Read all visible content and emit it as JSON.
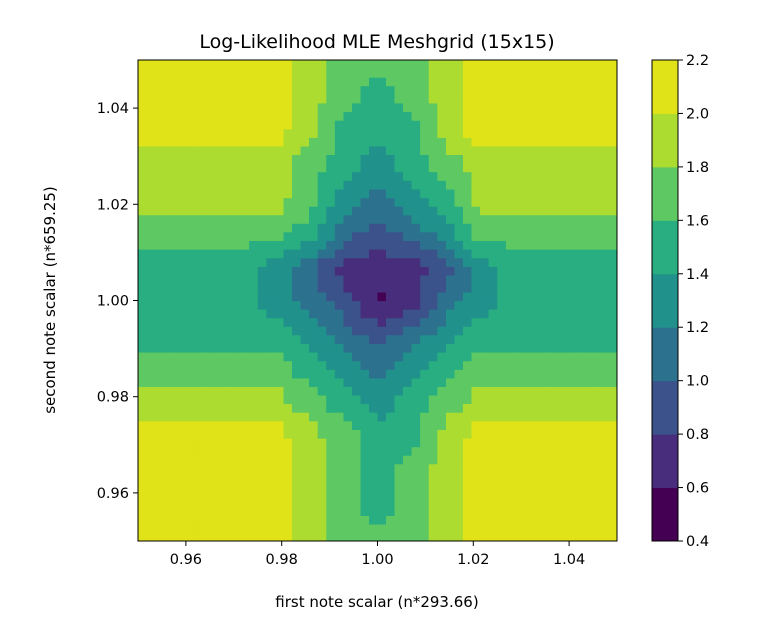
{
  "chart_data": {
    "type": "heatmap",
    "subtype": "filled-contour",
    "title": "Log-Likelihood MLE Meshgrid (15x15)",
    "xlabel": "first note scalar (n*293.66)",
    "ylabel": "second note scalar (n*659.25)",
    "xlim": [
      0.95,
      1.05
    ],
    "ylim": [
      0.95,
      1.05
    ],
    "x_ticks": [
      "0.96",
      "0.98",
      "1.00",
      "1.02",
      "1.04"
    ],
    "y_ticks": [
      "0.96",
      "0.98",
      "1.00",
      "1.02",
      "1.04"
    ],
    "grid": false,
    "colormap": "viridis",
    "colorbar": {
      "levels": [
        0.4,
        0.6,
        0.8,
        1.0,
        1.2,
        1.4,
        1.6,
        1.8,
        2.0,
        2.2
      ],
      "tick_labels": [
        "0.4",
        "0.6",
        "0.8",
        "1.0",
        "1.2",
        "1.4",
        "1.6",
        "1.8",
        "2.0",
        "2.2"
      ],
      "colors": [
        "#440154",
        "#472d7b",
        "#3b528b",
        "#2c728e",
        "#21918c",
        "#28ae80",
        "#5ec962",
        "#addc30",
        "#dfe318"
      ]
    },
    "grid_size": "15x15",
    "grid_axis": [
      0.95,
      0.9571,
      0.9643,
      0.9714,
      0.9786,
      0.9857,
      0.9929,
      1.0,
      1.0071,
      1.0143,
      1.0214,
      1.0286,
      1.0357,
      1.0429,
      1.05
    ],
    "z_estimated": [
      [
        2.1,
        2.1,
        2.1,
        2.1,
        2.1,
        1.9,
        1.7,
        1.7,
        1.7,
        1.9,
        2.1,
        2.1,
        2.1,
        2.1,
        2.1
      ],
      [
        2.1,
        2.1,
        2.1,
        2.1,
        2.1,
        1.9,
        1.7,
        1.5,
        1.7,
        1.9,
        2.1,
        2.1,
        2.1,
        2.1,
        2.1
      ],
      [
        2.1,
        2.1,
        2.1,
        2.1,
        2.1,
        1.9,
        1.7,
        1.5,
        1.7,
        1.9,
        2.1,
        2.1,
        2.1,
        2.1,
        2.1
      ],
      [
        2.1,
        2.1,
        2.1,
        2.1,
        2.1,
        1.9,
        1.7,
        1.5,
        1.5,
        1.9,
        2.1,
        2.1,
        2.1,
        2.1,
        2.1
      ],
      [
        1.9,
        1.9,
        1.9,
        1.9,
        1.9,
        1.7,
        1.5,
        1.3,
        1.5,
        1.7,
        1.9,
        1.9,
        1.9,
        1.9,
        1.9
      ],
      [
        1.7,
        1.7,
        1.7,
        1.7,
        1.7,
        1.5,
        1.3,
        1.1,
        1.3,
        1.5,
        1.7,
        1.7,
        1.7,
        1.7,
        1.7
      ],
      [
        1.5,
        1.5,
        1.5,
        1.5,
        1.5,
        1.3,
        1.1,
        0.9,
        1.1,
        1.3,
        1.5,
        1.5,
        1.5,
        1.5,
        1.5
      ],
      [
        1.5,
        1.5,
        1.5,
        1.5,
        1.3,
        1.1,
        0.9,
        0.55,
        0.7,
        1.1,
        1.3,
        1.5,
        1.5,
        1.5,
        1.5
      ],
      [
        1.5,
        1.5,
        1.5,
        1.5,
        1.3,
        1.1,
        0.7,
        0.7,
        0.7,
        0.9,
        1.3,
        1.5,
        1.5,
        1.5,
        1.5
      ],
      [
        1.7,
        1.7,
        1.7,
        1.7,
        1.7,
        1.5,
        1.1,
        0.9,
        1.1,
        1.3,
        1.7,
        1.7,
        1.7,
        1.7,
        1.7
      ],
      [
        1.9,
        1.9,
        1.9,
        1.9,
        1.9,
        1.7,
        1.3,
        1.1,
        1.3,
        1.5,
        1.9,
        1.9,
        1.9,
        1.9,
        1.9
      ],
      [
        1.9,
        1.9,
        1.9,
        1.9,
        1.9,
        1.7,
        1.5,
        1.3,
        1.5,
        1.7,
        1.9,
        1.9,
        1.9,
        1.9,
        1.9
      ],
      [
        2.1,
        2.1,
        2.1,
        2.1,
        2.1,
        1.9,
        1.5,
        1.5,
        1.5,
        1.9,
        2.1,
        2.1,
        2.1,
        2.1,
        2.1
      ],
      [
        2.1,
        2.1,
        2.1,
        2.1,
        2.1,
        1.9,
        1.7,
        1.5,
        1.7,
        1.9,
        2.1,
        2.1,
        2.1,
        2.1,
        2.1
      ],
      [
        2.1,
        2.1,
        2.1,
        2.1,
        2.1,
        1.9,
        1.7,
        1.7,
        1.7,
        1.9,
        2.1,
        2.1,
        2.1,
        2.1,
        2.1
      ]
    ]
  }
}
